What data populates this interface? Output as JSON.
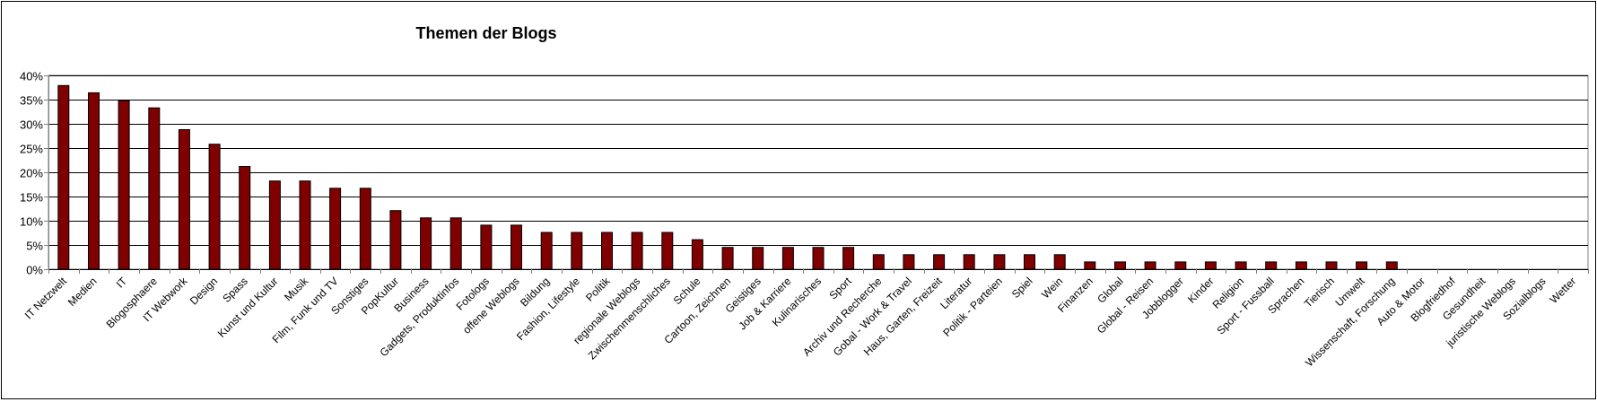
{
  "colors": {
    "bar_fill": "#800000",
    "bar_stroke": "#000000",
    "grid": "#000000",
    "axis": "#808080",
    "background": "#ffffff"
  },
  "chart_data": {
    "type": "bar",
    "title": "Themen der Blogs",
    "xlabel": "",
    "ylabel": "",
    "ylim": [
      0,
      0.4
    ],
    "y_format": "percent",
    "y_ticks": [
      "0%",
      "5%",
      "10%",
      "15%",
      "20%",
      "25%",
      "30%",
      "35%",
      "40%"
    ],
    "grid": true,
    "legend": "none",
    "categories": [
      "IT Netzwelt",
      "Medien",
      "IT",
      "Blogosphaere",
      "IT Webwork",
      "Design",
      "Spass",
      "Kunst und Kultur",
      "Musik",
      "Film, Funk und TV",
      "Sonstiges",
      "PopKultur",
      "Business",
      "Gadgets, Produktinfos",
      "Fotologs",
      "offene Weblogs",
      "Bildung",
      "Fashion, Lifestyle",
      "Politik",
      "regionale Weblogs",
      "Zwischenmenschliches",
      "Schule",
      "Cartoon, Zeichnen",
      "Geistiges",
      "Job & Karriere",
      "Kulinarisches",
      "Sport",
      "Archiv und Recherche",
      "Gobal - Work & Travel",
      "Haus, Garten, Freizeit",
      "Literatur",
      "Politik - Parteien",
      "Spiel",
      "Wein",
      "Finanzen",
      "Global",
      "Global - Reisen",
      "Jobblogger",
      "Kinder",
      "Religion",
      "Sport - Fussball",
      "Sprachen",
      "Tierisch",
      "Umwelt",
      "Wissenschaft, Forschung",
      "Auto & Motor",
      "Blogfriedhof",
      "Gesundheit",
      "juristische Weblogs",
      "Sozialblogs",
      "Wetter"
    ],
    "values": [
      0.379,
      0.364,
      0.348,
      0.333,
      0.288,
      0.258,
      0.212,
      0.182,
      0.182,
      0.167,
      0.167,
      0.121,
      0.106,
      0.106,
      0.091,
      0.091,
      0.076,
      0.076,
      0.076,
      0.076,
      0.076,
      0.061,
      0.045,
      0.045,
      0.045,
      0.045,
      0.045,
      0.03,
      0.03,
      0.03,
      0.03,
      0.03,
      0.03,
      0.03,
      0.015,
      0.015,
      0.015,
      0.015,
      0.015,
      0.015,
      0.015,
      0.015,
      0.015,
      0.015,
      0.015,
      0,
      0,
      0,
      0,
      0,
      0
    ]
  }
}
